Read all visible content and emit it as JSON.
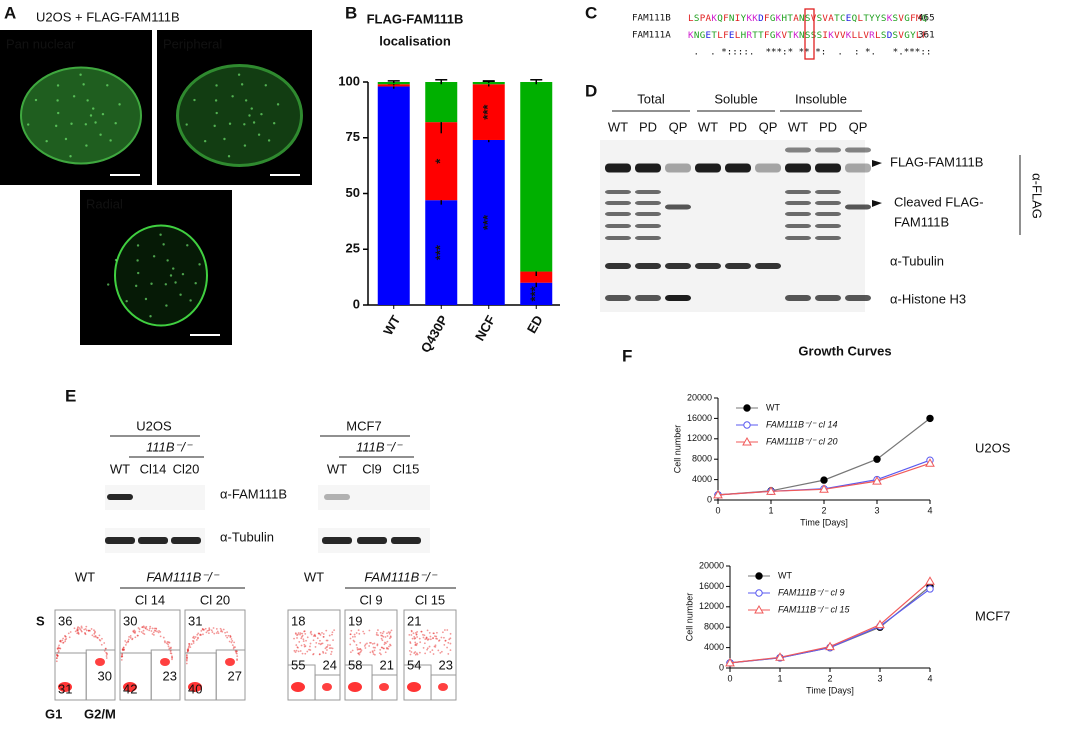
{
  "panel_labels": [
    "A",
    "B",
    "C",
    "D",
    "E",
    "F"
  ],
  "panel_a": {
    "title": "U2OS + FLAG-FAM111B",
    "images": [
      "Pan nuclear",
      "Peripheral",
      "Radial"
    ]
  },
  "chart_data": [
    {
      "type": "stacked_bar",
      "title": [
        "FLAG-FAM111B",
        "localisation"
      ],
      "categories": [
        "WT",
        "Q430P",
        "NCF",
        "ED"
      ],
      "ylim": [
        0,
        100
      ],
      "yticks": [
        0,
        25,
        50,
        75,
        100
      ],
      "series": [
        {
          "color": "#0000ff",
          "values": [
            98,
            47,
            74,
            10
          ],
          "errors": [
            1,
            2,
            1,
            2
          ],
          "significance": [
            null,
            "***",
            "***",
            "***"
          ]
        },
        {
          "color": "#ff0000",
          "values": [
            1,
            35,
            25,
            5
          ],
          "errors": [
            0.5,
            5,
            1,
            2
          ],
          "significance": [
            null,
            "*",
            "***",
            null
          ]
        },
        {
          "color": "#00b000",
          "values": [
            1,
            18,
            1,
            85
          ],
          "errors": [
            0.5,
            1,
            0.5,
            1
          ],
          "significance": [
            null,
            null,
            null,
            null
          ]
        }
      ]
    },
    {
      "type": "line",
      "title": "Growth Curves",
      "side_label": "U2OS",
      "xlabel": "Time [Days]",
      "ylabel": "Cell number",
      "x": [
        0,
        1,
        2,
        3,
        4
      ],
      "xlim": [
        0,
        4
      ],
      "xticks": [
        0,
        1,
        2,
        3,
        4
      ],
      "ylim": [
        0,
        20000
      ],
      "yticks": [
        0,
        4000,
        8000,
        12000,
        16000,
        20000
      ],
      "series": [
        {
          "name": "WT",
          "color": "#000000",
          "marker": "circle",
          "filled": true,
          "values": [
            1000,
            1800,
            3900,
            8000,
            16000
          ]
        },
        {
          "name": "FAM111B⁻/⁻ cl 14",
          "color": "#5a5af0",
          "marker": "circle",
          "filled": false,
          "values": [
            1000,
            1700,
            2200,
            4000,
            7800
          ]
        },
        {
          "name": "FAM111B⁻/⁻ cl 20",
          "color": "#f05a5a",
          "marker": "triangle",
          "filled": false,
          "values": [
            1000,
            1700,
            2100,
            3700,
            7200
          ]
        }
      ]
    },
    {
      "type": "line",
      "side_label": "MCF7",
      "xlabel": "Time [Days]",
      "ylabel": "Cell number",
      "x": [
        0,
        1,
        2,
        3,
        4
      ],
      "xlim": [
        0,
        4
      ],
      "xticks": [
        0,
        1,
        2,
        3,
        4
      ],
      "ylim": [
        0,
        20000
      ],
      "yticks": [
        0,
        4000,
        8000,
        12000,
        16000,
        20000
      ],
      "series": [
        {
          "name": "WT",
          "color": "#000000",
          "marker": "circle",
          "filled": true,
          "values": [
            1000,
            2000,
            4000,
            8000,
            16000
          ]
        },
        {
          "name": "FAM111B⁻/⁻ cl 9",
          "color": "#5a5af0",
          "marker": "circle",
          "filled": false,
          "values": [
            1000,
            2000,
            4000,
            8200,
            15500
          ]
        },
        {
          "name": "FAM111B⁻/⁻ cl 15",
          "color": "#f05a5a",
          "marker": "triangle",
          "filled": false,
          "values": [
            1000,
            2100,
            4200,
            8500,
            17000
          ]
        }
      ]
    }
  ],
  "panel_c": {
    "rows": [
      {
        "name": "FAM111B",
        "sequence": "LSPAKQFNIYKKDFGKHTANSVSVATCEQLTYYSKSVGFMQ",
        "end": 465
      },
      {
        "name": "FAM111A",
        "sequence": "KNGETLFELHRTTFGKVTKNSSSIKVVKLLVRLSDSVGYLF",
        "end": 361
      }
    ],
    "conservation": " .  . *::::.  ***:* ** *:  .  : *.   *.***::"
  },
  "panel_d": {
    "groups": [
      "Total",
      "Soluble",
      "Insoluble"
    ],
    "lanes": [
      "WT",
      "PD",
      "QP",
      "WT",
      "PD",
      "QP",
      "WT",
      "PD",
      "QP"
    ],
    "labels": [
      "FLAG-FAM111B",
      "Cleaved FLAG-",
      "FAM111B",
      "α-Tubulin",
      "α-Histone H3"
    ],
    "antibody": "α-FLAG"
  },
  "panel_e": {
    "blots": [
      {
        "line": "U2OS",
        "genotype": "111B⁻/⁻",
        "lanes": [
          "WT",
          "Cl14",
          "Cl20"
        ]
      },
      {
        "line": "MCF7",
        "genotype": "111B⁻/⁻",
        "lanes": [
          "WT",
          "Cl9",
          "Cl15"
        ]
      }
    ],
    "antibodies": [
      "α-FAM111B",
      "α-Tubulin"
    ],
    "phases": [
      "S",
      "G1",
      "G2/M"
    ],
    "flow": [
      {
        "genotype": "FAM111B⁻/⁻",
        "plots": [
          {
            "label": "WT",
            "s": 36,
            "g1": 31,
            "g2m": 30
          },
          {
            "label": "Cl 14",
            "s": 30,
            "g1": 42,
            "g2m": 23
          },
          {
            "label": "Cl 20",
            "s": 31,
            "g1": 40,
            "g2m": 27
          }
        ]
      },
      {
        "genotype": "FAM111B⁻/⁻",
        "plots": [
          {
            "label": "WT",
            "s": 18,
            "g1": 55,
            "g2m": 24
          },
          {
            "label": "Cl 9",
            "s": 19,
            "g1": 58,
            "g2m": 21
          },
          {
            "label": "Cl 15",
            "s": 21,
            "g1": 54,
            "g2m": 23
          }
        ]
      }
    ]
  }
}
